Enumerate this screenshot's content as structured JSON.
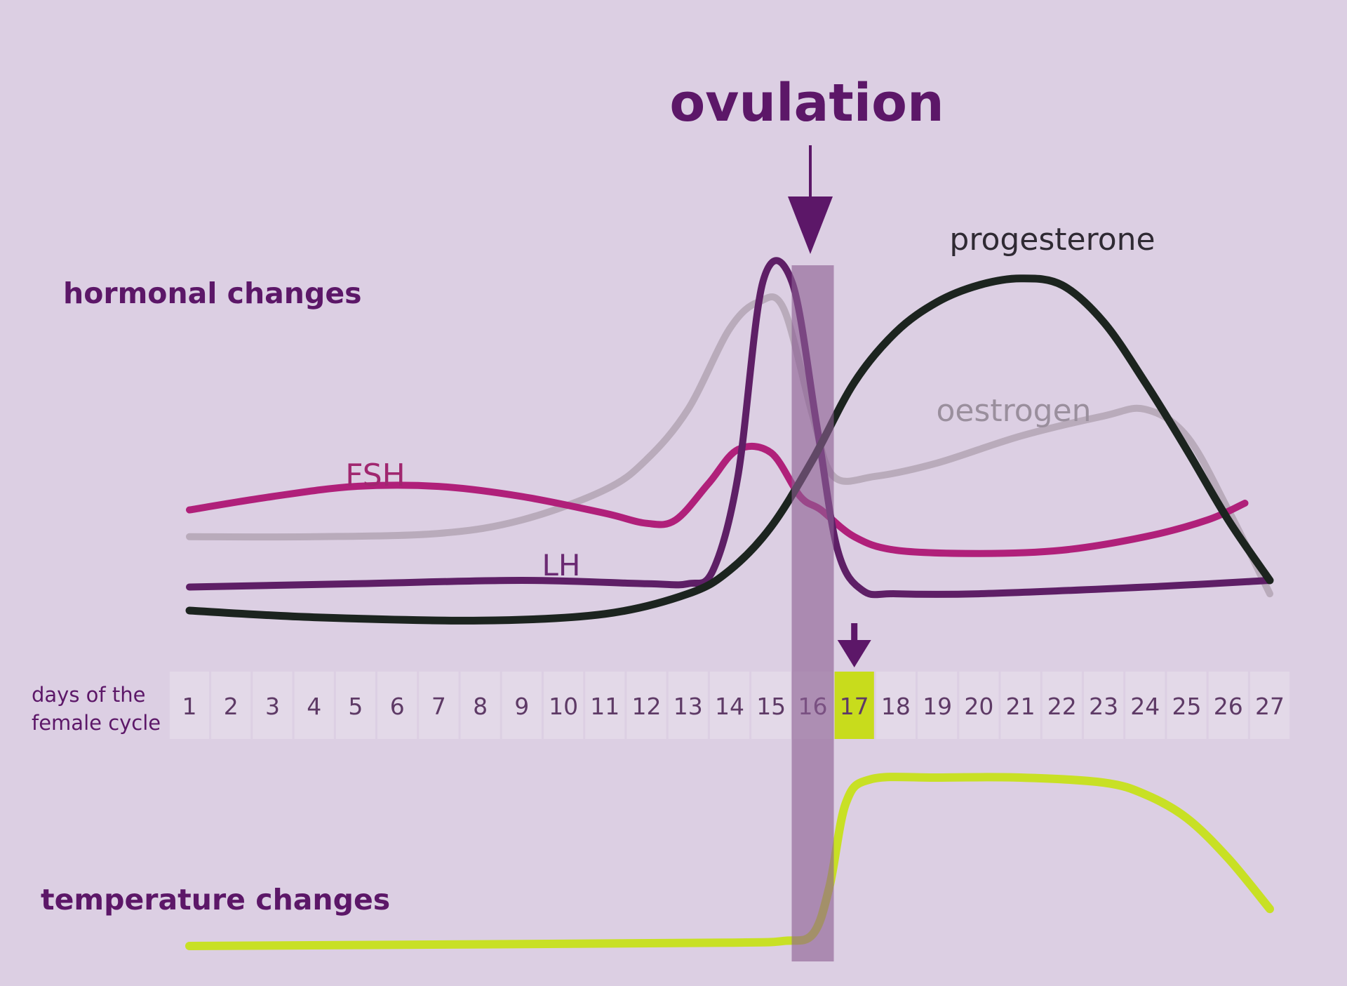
{
  "chart_data": {
    "type": "line",
    "title": "ovulation",
    "panels": {
      "hormonal": "hormonal changes",
      "temperature": "temperature changes"
    },
    "axis": {
      "label_line1": "days of the",
      "label_line2": "female cycle",
      "days": [
        "1",
        "2",
        "3",
        "4",
        "5",
        "6",
        "7",
        "8",
        "9",
        "10",
        "11",
        "12",
        "13",
        "14",
        "15",
        "16",
        "17",
        "18",
        "19",
        "20",
        "21",
        "22",
        "23",
        "24",
        "25",
        "26",
        "27"
      ]
    },
    "ovulation_day": 16,
    "marked_day": 17,
    "series": [
      {
        "name": "oestrogen",
        "color": "#b9abbb",
        "x": [
          1,
          4,
          7,
          9,
          11,
          12,
          13,
          14,
          14.7,
          15.3,
          16,
          16.5,
          17.5,
          19,
          21,
          23,
          24,
          25,
          26,
          27
        ],
        "y": [
          0.22,
          0.22,
          0.23,
          0.27,
          0.36,
          0.45,
          0.6,
          0.84,
          0.92,
          0.9,
          0.58,
          0.4,
          0.4,
          0.44,
          0.52,
          0.58,
          0.6,
          0.52,
          0.3,
          0.05
        ]
      },
      {
        "name": "FSH",
        "color": "#b0207a",
        "x": [
          1,
          3,
          5,
          7,
          9,
          11,
          12,
          12.7,
          13.5,
          14.2,
          15,
          15.7,
          16.2,
          17,
          18,
          20,
          22,
          24,
          25.5,
          26.4
        ],
        "y": [
          0.3,
          0.34,
          0.37,
          0.37,
          0.34,
          0.29,
          0.26,
          0.27,
          0.38,
          0.48,
          0.47,
          0.34,
          0.3,
          0.22,
          0.18,
          0.17,
          0.18,
          0.22,
          0.27,
          0.32
        ]
      },
      {
        "name": "LH",
        "color": "#5e1f66",
        "x": [
          1,
          5,
          9,
          12,
          13,
          13.6,
          14.2,
          14.8,
          15.5,
          16.1,
          16.6,
          17.2,
          18,
          20,
          24,
          27
        ],
        "y": [
          0.07,
          0.08,
          0.09,
          0.08,
          0.08,
          0.12,
          0.4,
          0.98,
          0.98,
          0.55,
          0.18,
          0.06,
          0.05,
          0.05,
          0.07,
          0.09
        ]
      },
      {
        "name": "progesterone",
        "color": "#1c241f",
        "x": [
          1,
          4,
          8,
          11,
          13,
          14,
          15,
          16,
          17,
          18,
          19,
          20,
          21,
          22,
          23,
          24,
          25,
          26,
          27
        ],
        "y": [
          0.0,
          -0.02,
          -0.03,
          -0.01,
          0.05,
          0.12,
          0.25,
          0.45,
          0.68,
          0.83,
          0.92,
          0.97,
          0.99,
          0.97,
          0.86,
          0.68,
          0.48,
          0.27,
          0.09
        ]
      }
    ],
    "temperature": {
      "color": "#c8e025",
      "x": [
        1,
        8,
        14,
        15.3,
        16,
        16.4,
        16.8,
        17.4,
        19,
        21,
        23,
        24,
        25,
        26,
        27
      ],
      "y": [
        0.0,
        0.01,
        0.02,
        0.03,
        0.07,
        0.35,
        0.85,
        0.99,
        1.0,
        1.0,
        0.97,
        0.9,
        0.76,
        0.52,
        0.22
      ]
    }
  }
}
